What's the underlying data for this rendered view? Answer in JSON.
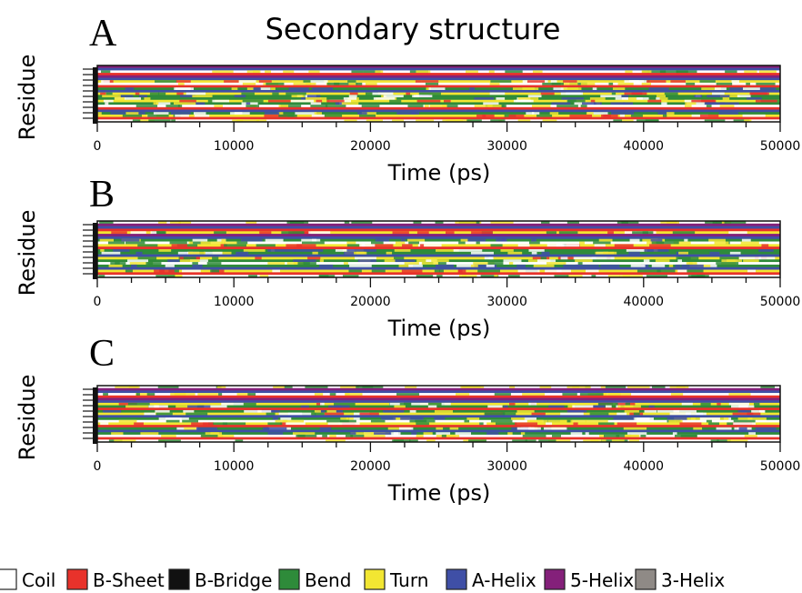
{
  "chart_data": {
    "type": "heatmap",
    "title": "Secondary structure",
    "xlim": [
      0,
      50000
    ],
    "x_ticks": [
      0,
      10000,
      20000,
      30000,
      40000,
      50000
    ],
    "x_tick_labels": [
      "0",
      "10000",
      "20000",
      "30000",
      "40000",
      "50000"
    ],
    "panels": [
      {
        "label": "A",
        "xlabel": "Time (ps)",
        "ylabel": "Residue",
        "residue_rows": [
          "5-Helix",
          "A-Helix",
          "Coil",
          "B-Sheet",
          "5-Helix",
          "A-Helix",
          "Turn",
          "Coil",
          "B-Sheet",
          "Bend",
          "A-Helix",
          "Turn",
          "Bend",
          "Bend",
          "Turn",
          "Bend",
          "Coil",
          "B-Sheet",
          "A-Helix",
          "Bend",
          "Turn",
          "B-Sheet",
          "Coil"
        ]
      },
      {
        "label": "B",
        "xlabel": "Time (ps)",
        "ylabel": "Residue",
        "residue_rows": [
          "Coil",
          "5-Helix",
          "A-Helix",
          "B-Sheet",
          "Turn",
          "5-Helix",
          "A-Helix",
          "Bend",
          "Coil",
          "Turn",
          "B-Sheet",
          "Bend",
          "Bend",
          "A-Helix",
          "Turn",
          "Bend",
          "Coil",
          "Bend",
          "A-Helix",
          "Turn",
          "B-Sheet",
          "Coil"
        ]
      },
      {
        "label": "C",
        "xlabel": "Time (ps)",
        "ylabel": "Residue",
        "residue_rows": [
          "Coil",
          "5-Helix",
          "A-Helix",
          "Coil",
          "B-Sheet",
          "5-Helix",
          "A-Helix",
          "Turn",
          "Bend",
          "B-Sheet",
          "Bend",
          "Turn",
          "A-Helix",
          "Bend",
          "Coil",
          "Turn",
          "B-Sheet",
          "Bend",
          "A-Helix",
          "Bend",
          "Coil",
          "B-Sheet",
          "Coil"
        ]
      }
    ],
    "legend_position": "bottom",
    "legend": [
      {
        "name": "Coil",
        "color": "#ffffff"
      },
      {
        "name": "B-Sheet",
        "color": "#e8322b"
      },
      {
        "name": "B-Bridge",
        "color": "#111111"
      },
      {
        "name": "Bend",
        "color": "#2e8b3a"
      },
      {
        "name": "Turn",
        "color": "#f2e632"
      },
      {
        "name": "A-Helix",
        "color": "#3f4fa6"
      },
      {
        "name": "5-Helix",
        "color": "#84207a"
      },
      {
        "name": "3-Helix",
        "color": "#8f8a86"
      }
    ]
  }
}
